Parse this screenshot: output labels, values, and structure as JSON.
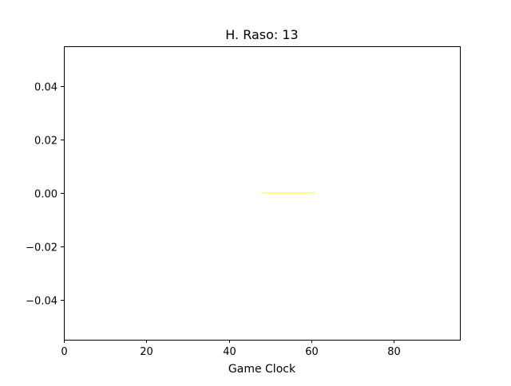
{
  "chart_data": {
    "type": "line",
    "title": "H. Raso: 13",
    "xlabel": "Game Clock",
    "ylabel": "",
    "xlim": [
      0,
      96
    ],
    "ylim": [
      -0.055,
      0.055
    ],
    "x_ticks": [
      0,
      20,
      40,
      60,
      80
    ],
    "x_tick_labels": [
      "0",
      "20",
      "40",
      "60",
      "80"
    ],
    "y_ticks": [
      0.04,
      0.02,
      0.0,
      -0.02,
      -0.04
    ],
    "y_tick_labels": [
      "0.04",
      "0.02",
      "0.00",
      "−0.02",
      "−0.04"
    ],
    "grid": false,
    "series": [
      {
        "color": "#ffff66",
        "x": [
          48,
          61
        ],
        "y": [
          0,
          0
        ]
      }
    ]
  }
}
